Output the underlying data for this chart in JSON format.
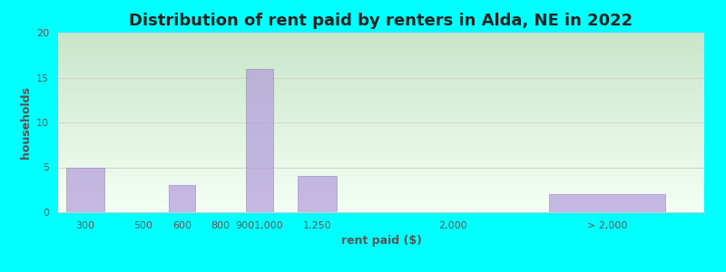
{
  "title": "Distribution of rent paid by renters in Alda, NE in 2022",
  "xlabel": "rent paid ($)",
  "ylabel": "households",
  "categories": [
    "300",
    "500",
    "600",
    "800",
    "9001,000",
    "1,250",
    "2,000",
    "> 2,000"
  ],
  "tick_labels": [
    "300",
    "500",
    "600",
    "800",
    "9001,000",
    "1,250",
    "2,000",
    "> 2,000"
  ],
  "xlabels": [
    "300",
    "500",
    "600",
    "800",
    "9001,000",
    "1,250",
    "2,000",
    "> 2,000"
  ],
  "bar_values": [
    5,
    0,
    3,
    0,
    16,
    4,
    0,
    2
  ],
  "bar_positions": [
    0.5,
    2.0,
    3.0,
    4.0,
    5.0,
    6.5,
    10.0,
    14.0
  ],
  "bar_widths": [
    1.0,
    0.7,
    0.7,
    0.7,
    0.7,
    1.0,
    1.0,
    3.0
  ],
  "xtick_positions": [
    0.5,
    2.0,
    3.0,
    4.0,
    5.0,
    6.5,
    10.0,
    14.0
  ],
  "xtick_labels": [
    "300",
    "500",
    "600",
    "800",
    "9001,000",
    "1,250",
    "2,000",
    "> 2,000"
  ],
  "bar_color": "#b39ddb",
  "bar_edge_color": "#9575cd",
  "background_color": "#00ffff",
  "ylim": [
    0,
    20
  ],
  "yticks": [
    0,
    5,
    10,
    15,
    20
  ],
  "title_fontsize": 13,
  "axis_label_fontsize": 9,
  "tick_fontsize": 8,
  "bar_alpha": 0.72,
  "grid_color": "#d0d0d0",
  "text_color": "#555555",
  "title_color": "#222222",
  "gradient_top_color": "#c8e6c9",
  "gradient_bottom_color": "#f5fff5",
  "xlim": [
    -0.2,
    16.5
  ]
}
